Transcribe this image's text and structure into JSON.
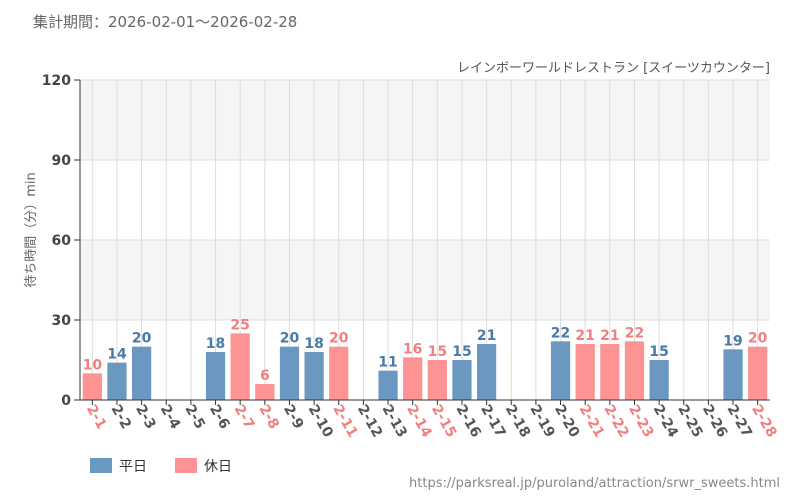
{
  "header": {
    "period": "集計期間：2026-02-01～2026-02-28"
  },
  "footer": {
    "source_url": "https://parksreal.jp/puroland/attraction/srwr_sweets.html"
  },
  "chart_data": {
    "type": "bar",
    "title": "レインボーワールドレストラン [スイーツカウンター]",
    "xlabel": "",
    "ylabel": "待ち時間（分）min",
    "ylim": [
      0,
      120
    ],
    "yticks": [
      0,
      30,
      60,
      90,
      120
    ],
    "grid": true,
    "categories": [
      "2-1",
      "2-2",
      "2-3",
      "2-4",
      "2-5",
      "2-6",
      "2-7",
      "2-8",
      "2-9",
      "2-10",
      "2-11",
      "2-12",
      "2-13",
      "2-14",
      "2-15",
      "2-16",
      "2-17",
      "2-18",
      "2-19",
      "2-20",
      "2-21",
      "2-22",
      "2-23",
      "2-24",
      "2-25",
      "2-26",
      "2-27",
      "2-28"
    ],
    "values": [
      10,
      14,
      20,
      null,
      null,
      18,
      25,
      6,
      20,
      18,
      20,
      null,
      11,
      16,
      15,
      15,
      21,
      null,
      null,
      22,
      21,
      21,
      22,
      15,
      null,
      null,
      19,
      20
    ],
    "day_type": [
      "holiday",
      "weekday",
      "weekday",
      "weekday",
      "weekday",
      "weekday",
      "holiday",
      "holiday",
      "weekday",
      "weekday",
      "holiday",
      "weekday",
      "weekday",
      "holiday",
      "holiday",
      "weekday",
      "weekday",
      "weekday",
      "weekday",
      "weekday",
      "holiday",
      "holiday",
      "holiday",
      "weekday",
      "weekday",
      "weekday",
      "weekday",
      "holiday"
    ],
    "legend": [
      {
        "key": "weekday",
        "label": "平日"
      },
      {
        "key": "holiday",
        "label": "休日"
      }
    ],
    "legend_position": "bottom-left",
    "colors": {
      "weekday": "#6a98c1",
      "holiday": "#fd9393",
      "weekday_label": "#4a7aa6",
      "holiday_label": "#f08080",
      "weekday_tick": "#555555",
      "holiday_tick": "#f08080",
      "band_light": "#f5f5f5",
      "band_white": "#ffffff",
      "gridline": "#dddddd",
      "axis": "#333333",
      "text": "#666666"
    }
  }
}
